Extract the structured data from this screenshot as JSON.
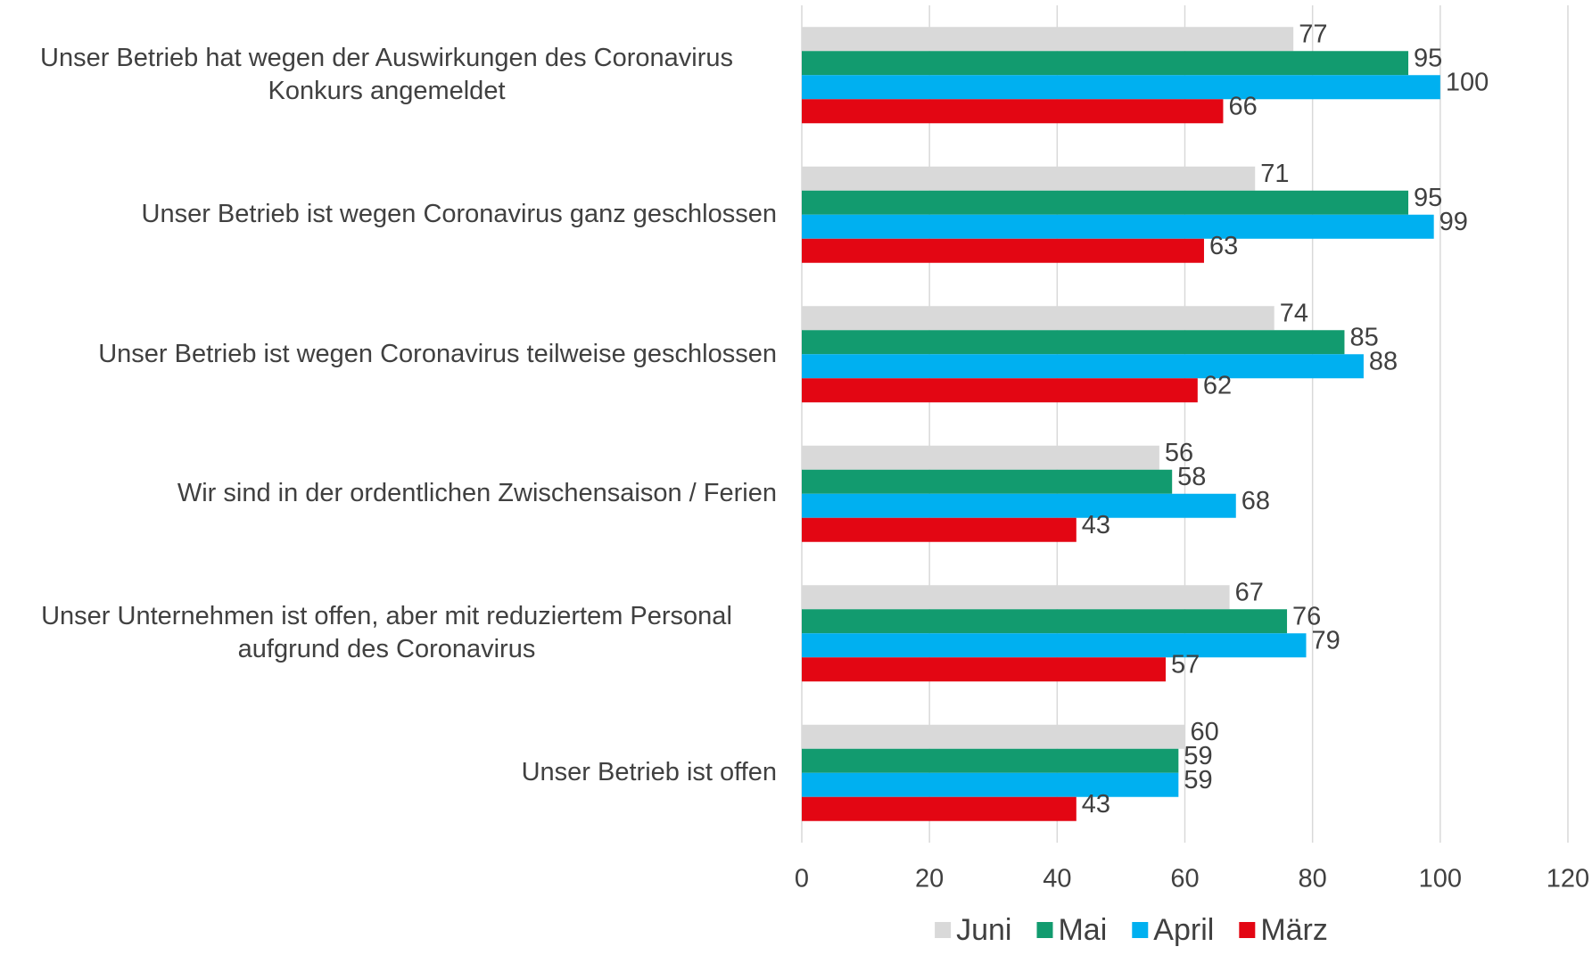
{
  "chart_data": {
    "type": "barh",
    "categories": [
      "Unser Betrieb hat wegen der Auswirkungen des Coronavirus Konkurs angemeldet",
      "Unser Betrieb ist wegen Coronavirus ganz geschlossen",
      "Unser Betrieb ist wegen Coronavirus teilweise geschlossen",
      "Wir sind in der ordentlichen Zwischensaison / Ferien",
      "Unser Unternehmen ist offen, aber mit reduziertem Personal aufgrund des Coronavirus",
      "Unser Betrieb ist offen"
    ],
    "series": [
      {
        "name": "Juni",
        "color": "#d9d9d9",
        "values": [
          77,
          71,
          74,
          56,
          67,
          60
        ]
      },
      {
        "name": "Mai",
        "color": "#129b6f",
        "values": [
          95,
          95,
          85,
          58,
          76,
          59
        ]
      },
      {
        "name": "April",
        "color": "#00b0f0",
        "values": [
          100,
          99,
          88,
          68,
          79,
          59
        ]
      },
      {
        "name": "März",
        "color": "#e30613",
        "values": [
          66,
          63,
          62,
          43,
          57,
          43
        ]
      }
    ],
    "xlim": [
      0,
      120
    ],
    "xticks": [
      0,
      20,
      40,
      60,
      80,
      100,
      120
    ],
    "grid": true,
    "legend": "bottom"
  }
}
